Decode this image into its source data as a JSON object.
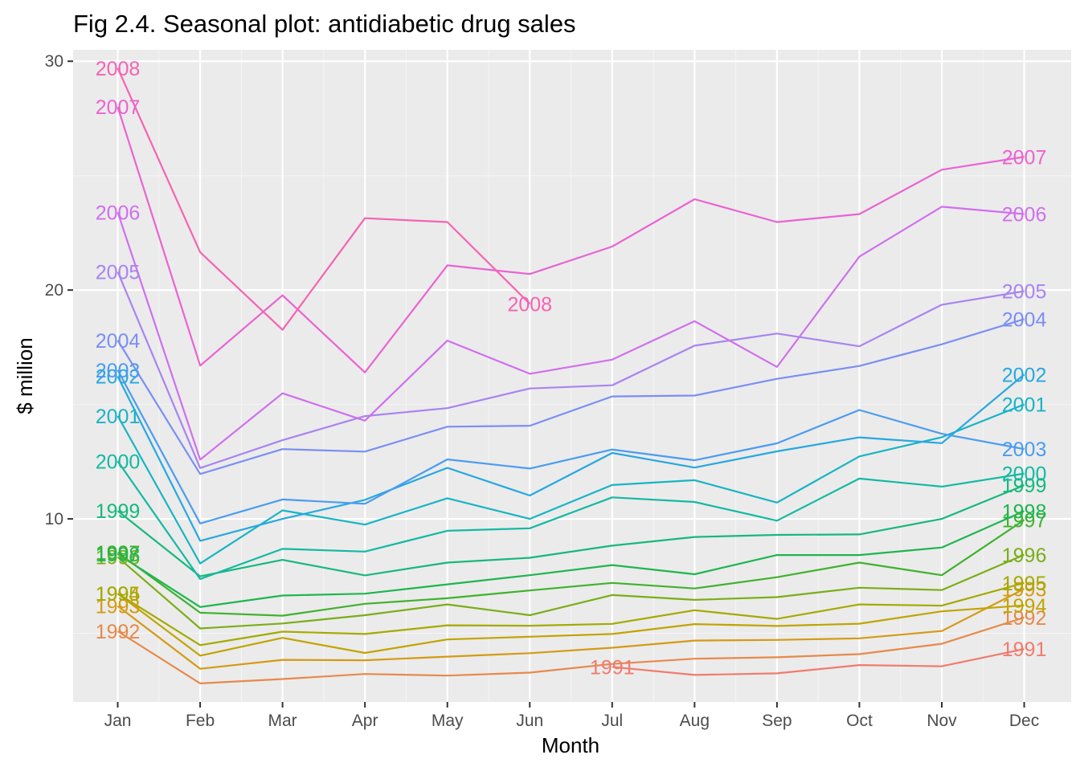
{
  "chart_data": {
    "type": "line",
    "title": "Fig 2.4. Seasonal plot: antidiabetic drug sales",
    "xlabel": "Month",
    "ylabel": "$ million",
    "categories": [
      "Jan",
      "Feb",
      "Mar",
      "Apr",
      "May",
      "Jun",
      "Jul",
      "Aug",
      "Sep",
      "Oct",
      "Nov",
      "Dec"
    ],
    "ylim": [
      2.0,
      30.5
    ],
    "yticks": [
      10,
      20,
      30
    ],
    "grid": true,
    "legend": "none (series labelled at line ends)",
    "series": [
      {
        "name": "1991",
        "color": "#f07b6e",
        "values": [
          null,
          null,
          null,
          null,
          null,
          null,
          3.53,
          3.18,
          3.25,
          3.61,
          3.56,
          4.31
        ]
      },
      {
        "name": "1992",
        "color": "#e7894b",
        "values": [
          5.09,
          2.81,
          3.0,
          3.22,
          3.15,
          3.28,
          3.66,
          3.89,
          3.95,
          4.09,
          4.54,
          5.69
        ]
      },
      {
        "name": "1993",
        "color": "#d59a14",
        "values": [
          6.19,
          3.45,
          3.84,
          3.82,
          3.98,
          4.13,
          4.37,
          4.68,
          4.71,
          4.78,
          5.1,
          6.94
        ]
      },
      {
        "name": "1994",
        "color": "#c1a400",
        "values": [
          6.73,
          4.02,
          4.8,
          4.14,
          4.73,
          4.85,
          4.97,
          5.4,
          5.32,
          5.42,
          5.96,
          6.22
        ]
      },
      {
        "name": "1995",
        "color": "#a4aa00",
        "values": [
          6.74,
          4.48,
          5.07,
          4.97,
          5.35,
          5.33,
          5.41,
          6.01,
          5.63,
          6.26,
          6.21,
          7.2
        ]
      },
      {
        "name": "1996",
        "color": "#7aae17",
        "values": [
          8.33,
          5.21,
          5.43,
          5.79,
          6.26,
          5.79,
          6.67,
          6.46,
          6.58,
          6.99,
          6.89,
          8.43
        ]
      },
      {
        "name": "1997",
        "color": "#3fb22d",
        "values": [
          8.53,
          5.9,
          5.77,
          6.29,
          6.53,
          6.87,
          7.2,
          6.96,
          7.45,
          8.09,
          7.54,
          9.95
        ]
      },
      {
        "name": "1998",
        "color": "#1db64f",
        "values": [
          8.46,
          6.15,
          6.65,
          6.73,
          7.14,
          7.54,
          7.98,
          7.58,
          8.42,
          8.42,
          8.75,
          10.34
        ]
      },
      {
        "name": "1999",
        "color": "#17b87d",
        "values": [
          10.35,
          7.49,
          8.21,
          7.53,
          8.09,
          8.3,
          8.83,
          9.21,
          9.3,
          9.32,
          10.0,
          11.47
        ]
      },
      {
        "name": "2000",
        "color": "#14b9a3",
        "values": [
          12.52,
          7.37,
          8.69,
          8.57,
          9.48,
          9.59,
          10.94,
          10.74,
          9.92,
          11.76,
          11.41,
          11.98
        ]
      },
      {
        "name": "2001",
        "color": "#18b4c4",
        "values": [
          14.5,
          8.05,
          10.37,
          9.75,
          10.9,
          10.0,
          11.48,
          11.69,
          10.71,
          12.73,
          13.57,
          15.0
        ]
      },
      {
        "name": "2002",
        "color": "#26a8e0",
        "values": [
          16.23,
          9.04,
          10.0,
          10.83,
          12.23,
          11.02,
          12.88,
          12.24,
          12.95,
          13.56,
          13.31,
          16.31
        ]
      },
      {
        "name": "2003",
        "color": "#4a9cf0",
        "values": [
          16.5,
          9.8,
          10.85,
          10.66,
          12.6,
          12.2,
          13.03,
          12.56,
          13.3,
          14.76,
          13.72,
          13.05
        ]
      },
      {
        "name": "2004",
        "color": "#7a8ff3",
        "values": [
          17.8,
          11.96,
          13.05,
          12.94,
          14.03,
          14.07,
          15.35,
          15.39,
          16.12,
          16.68,
          17.63,
          18.73
        ]
      },
      {
        "name": "2005",
        "color": "#a884f1",
        "values": [
          20.8,
          12.22,
          13.44,
          14.49,
          14.84,
          15.7,
          15.84,
          17.57,
          18.1,
          17.54,
          19.36,
          19.95
        ]
      },
      {
        "name": "2006",
        "color": "#d06fee",
        "values": [
          23.4,
          12.59,
          15.49,
          14.29,
          17.79,
          16.34,
          16.96,
          18.64,
          16.64,
          21.46,
          23.64,
          23.32
        ]
      },
      {
        "name": "2007",
        "color": "#ea63d2",
        "values": [
          28.0,
          16.7,
          19.77,
          16.4,
          21.08,
          20.7,
          21.9,
          23.97,
          22.97,
          23.32,
          25.26,
          25.82
        ]
      },
      {
        "name": "2008",
        "color": "#f563b3",
        "values": [
          29.7,
          21.65,
          18.26,
          23.14,
          22.97,
          19.4,
          null,
          null,
          null,
          null,
          null,
          null
        ]
      }
    ]
  }
}
